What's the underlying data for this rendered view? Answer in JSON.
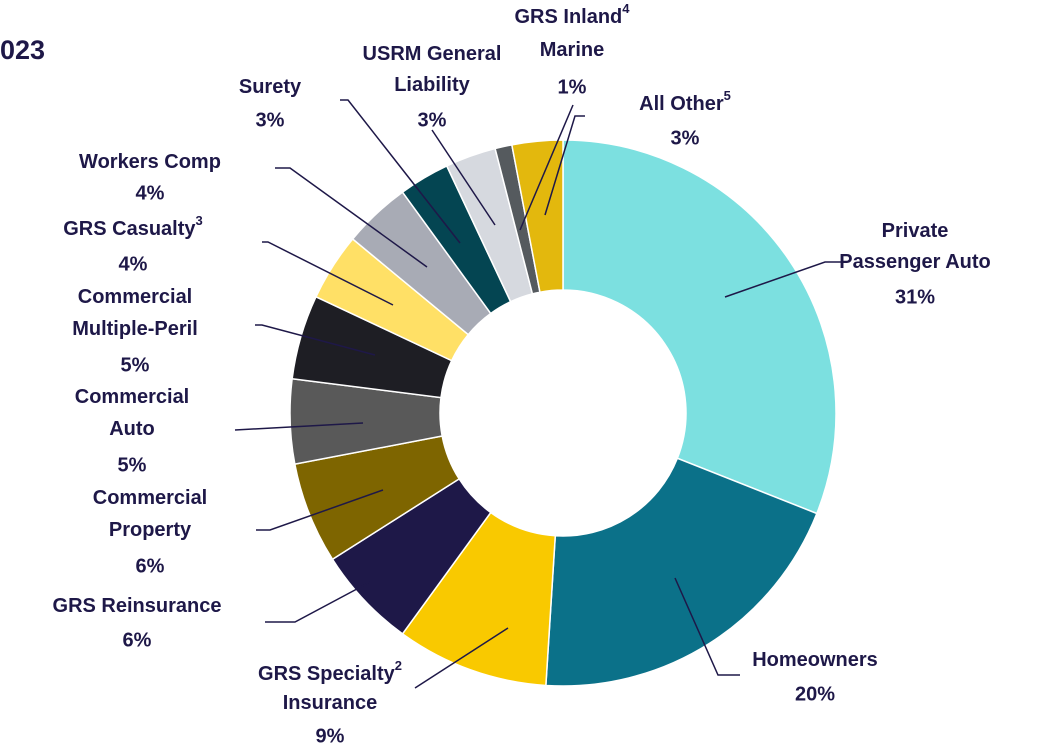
{
  "chart_data": {
    "type": "donut",
    "title": "023",
    "categories": [
      [
        "Private",
        "Passenger Auto"
      ],
      [
        "Homeowners"
      ],
      [
        "GRS Specialty",
        "Insurance"
      ],
      [
        "GRS Reinsurance"
      ],
      [
        "Commercial",
        "Property"
      ],
      [
        "Commercial",
        "Auto"
      ],
      [
        "Commercial",
        "Multiple-Peril"
      ],
      [
        "GRS Casualty"
      ],
      [
        "Workers Comp"
      ],
      [
        "Surety"
      ],
      [
        "USRM General",
        "Liability"
      ],
      [
        "GRS Inland",
        "Marine"
      ],
      [
        "All Other"
      ]
    ],
    "superscripts": [
      null,
      null,
      "2",
      null,
      null,
      null,
      null,
      "3",
      null,
      null,
      null,
      "4",
      "5"
    ],
    "values": [
      31,
      20,
      9,
      6,
      6,
      5,
      5,
      4,
      4,
      3,
      3,
      1,
      3
    ],
    "value_labels": [
      "31%",
      "20%",
      "9%",
      "6%",
      "6%",
      "5%",
      "5%",
      "4%",
      "4%",
      "3%",
      "3%",
      "1%",
      "3%"
    ],
    "colors": [
      "#7ce0e0",
      "#0b7189",
      "#f9c900",
      "#1e1848",
      "#7e6500",
      "#595959",
      "#1e1e24",
      "#ffe066",
      "#a8abb5",
      "#044552",
      "#d6d9df",
      "#555a5e",
      "#e3b80d"
    ]
  }
}
